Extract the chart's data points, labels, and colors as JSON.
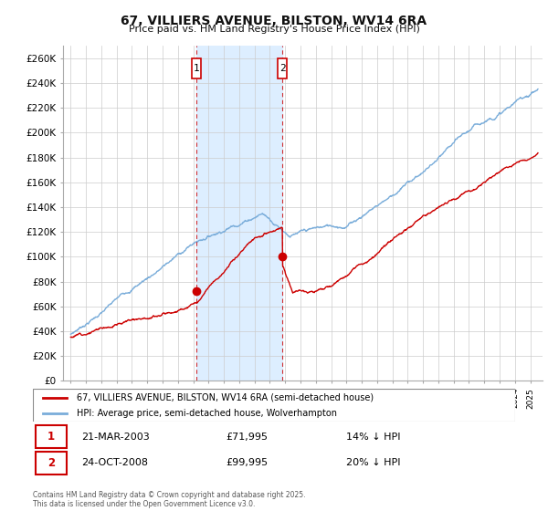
{
  "title": "67, VILLIERS AVENUE, BILSTON, WV14 6RA",
  "subtitle": "Price paid vs. HM Land Registry's House Price Index (HPI)",
  "ylabel_ticks": [
    "£0",
    "£20K",
    "£40K",
    "£60K",
    "£80K",
    "£100K",
    "£120K",
    "£140K",
    "£160K",
    "£180K",
    "£200K",
    "£220K",
    "£240K",
    "£260K"
  ],
  "ytick_vals": [
    0,
    20000,
    40000,
    60000,
    80000,
    100000,
    120000,
    140000,
    160000,
    180000,
    200000,
    220000,
    240000,
    260000
  ],
  "ylim": [
    0,
    270000
  ],
  "xlim_start": 1994.5,
  "xlim_end": 2025.8,
  "hpi_color": "#7aadda",
  "price_color": "#cc0000",
  "shaded_color": "#ddeeff",
  "sale1_x": 2003.22,
  "sale1_y": 71995,
  "sale2_x": 2008.82,
  "sale2_y": 99995,
  "legend_line1": "67, VILLIERS AVENUE, BILSTON, WV14 6RA (semi-detached house)",
  "legend_line2": "HPI: Average price, semi-detached house, Wolverhampton",
  "table_row1": [
    "1",
    "21-MAR-2003",
    "£71,995",
    "14% ↓ HPI"
  ],
  "table_row2": [
    "2",
    "24-OCT-2008",
    "£99,995",
    "20% ↓ HPI"
  ],
  "footer": "Contains HM Land Registry data © Crown copyright and database right 2025.\nThis data is licensed under the Open Government Licence v3.0.",
  "background_color": "#ffffff",
  "plot_bg_color": "#ffffff"
}
